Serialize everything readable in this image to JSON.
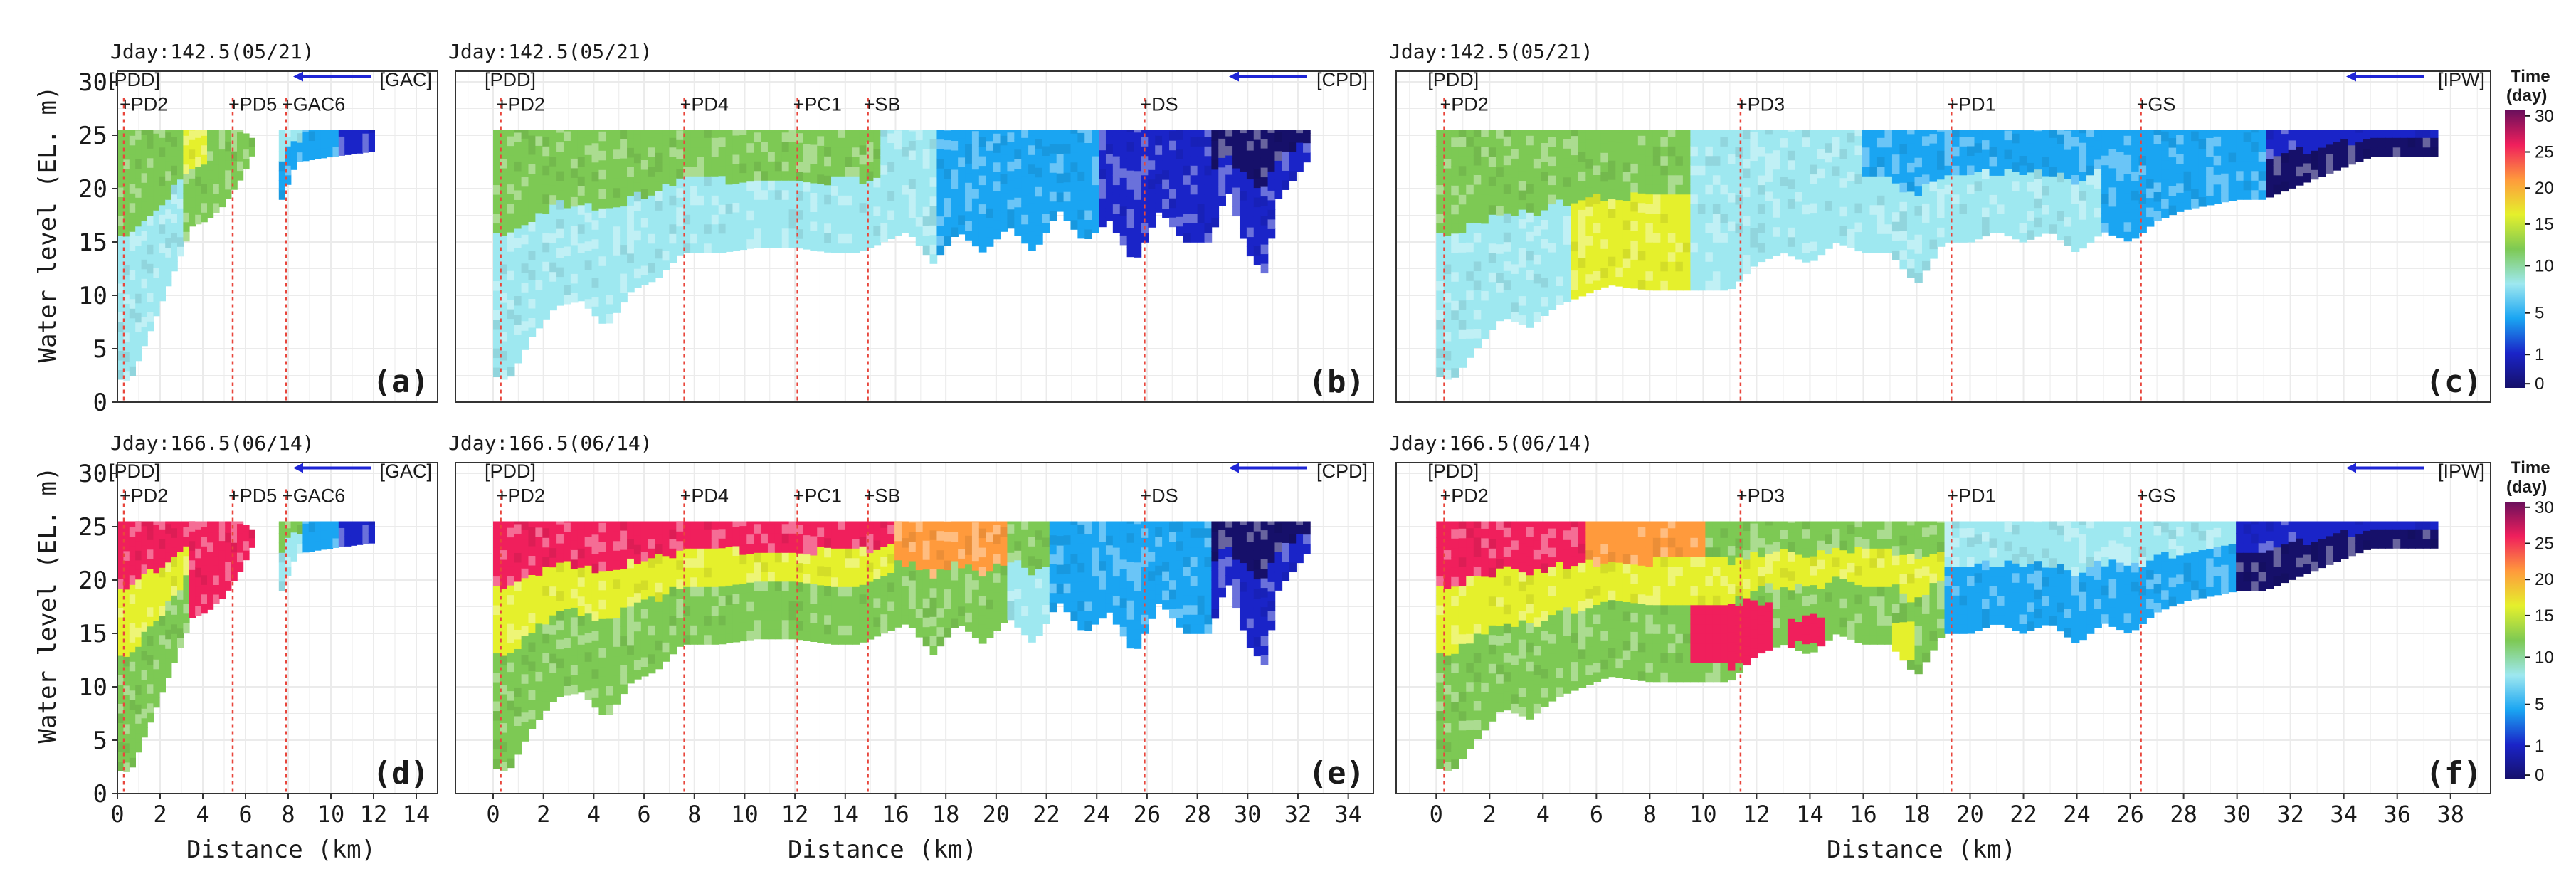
{
  "colors": {
    "grid": "#ebebeb",
    "border": "#333333",
    "marker_line": "#e8463c",
    "arrow": "#1f26d6",
    "text": "#1a1a1a"
  },
  "shared": {
    "ylabel": "Water level (EL. m)",
    "xlabel": "Distance (km)",
    "y_ticks": [
      "0",
      "5",
      "10",
      "15",
      "20",
      "25",
      "30"
    ]
  },
  "legend": {
    "title_line1": "Time",
    "title_line2": "(day)",
    "ticks": [
      "30",
      "25",
      "20",
      "15",
      "10",
      "5",
      "1",
      "0"
    ],
    "palette": [
      "#16106a",
      "#1a24c8",
      "#1aa5f2",
      "#9ee8f0",
      "#7dc954",
      "#e5f02c",
      "#ff9a3c",
      "#f01f5c",
      "#6a0f5c"
    ]
  },
  "chart_data": [
    {
      "id": "a",
      "type": "heatmap",
      "panel_label": "(a)",
      "title": "Jday:142.5(05/21)",
      "xlim": [
        0,
        15
      ],
      "ylim": [
        0,
        31
      ],
      "x_ticks": [
        "0",
        "2",
        "4",
        "6",
        "8",
        "10",
        "12",
        "14"
      ],
      "branch": "[GAC]",
      "origin": "[PDD]",
      "stations": [
        {
          "name": "+PD2",
          "x": 0.3
        },
        {
          "name": "+PD5",
          "x": 5.4
        },
        {
          "name": "+GAC6",
          "x": 7.9
        }
      ],
      "x_max_data": 12.0,
      "surface": [
        [
          0,
          25.5
        ],
        [
          5.8,
          25.5
        ],
        [
          6.6,
          24.3
        ],
        [
          7.6,
          25.5
        ],
        [
          12.0,
          25.5
        ]
      ],
      "bottom": [
        [
          0,
          2.2
        ],
        [
          0.6,
          2.0
        ],
        [
          1.2,
          5
        ],
        [
          2.0,
          9
        ],
        [
          2.8,
          13
        ],
        [
          3.5,
          16.5
        ],
        [
          4.2,
          17
        ],
        [
          5.0,
          18.5
        ],
        [
          5.8,
          21
        ],
        [
          6.6,
          24.3
        ],
        [
          7.6,
          18.5
        ],
        [
          8.4,
          22.5
        ],
        [
          10,
          23
        ],
        [
          12.0,
          23.5
        ]
      ],
      "zones": [
        {
          "x0": 0,
          "x1": 1.0,
          "c": 4,
          "c2": 3
        },
        {
          "x0": 1.0,
          "x1": 3.2,
          "c": 4,
          "c2": 3
        },
        {
          "x0": 3.2,
          "x1": 4.2,
          "c": 5,
          "c2": 4
        },
        {
          "x0": 4.2,
          "x1": 6.6,
          "c": 4,
          "c2": 4
        },
        {
          "x0": 7.6,
          "x1": 8.6,
          "c": 3,
          "c2": 2
        },
        {
          "x0": 8.6,
          "x1": 10.5,
          "c": 2,
          "c2": 2
        },
        {
          "x0": 10.5,
          "x1": 12.0,
          "c": 1,
          "c2": 1
        }
      ]
    },
    {
      "id": "b",
      "type": "heatmap",
      "panel_label": "(b)",
      "title": "Jday:142.5(05/21)",
      "xlim": [
        -1.5,
        35
      ],
      "ylim": [
        0,
        31
      ],
      "x_ticks": [
        "0",
        "2",
        "4",
        "6",
        "8",
        "10",
        "12",
        "14",
        "16",
        "18",
        "20",
        "22",
        "24",
        "26",
        "28",
        "30",
        "32",
        "34"
      ],
      "branch": "[CPD]",
      "origin": "[PDD]",
      "stations": [
        {
          "name": "+PD2",
          "x": 0.3
        },
        {
          "name": "+PD4",
          "x": 7.6
        },
        {
          "name": "+PC1",
          "x": 12.1
        },
        {
          "name": "+SB",
          "x": 14.9
        },
        {
          "name": "+DS",
          "x": 25.9
        }
      ],
      "x_max_data": 32.5,
      "surface": [
        [
          0,
          25.5
        ],
        [
          32.5,
          25.5
        ]
      ],
      "bottom": [
        [
          0,
          2.5
        ],
        [
          0.6,
          2
        ],
        [
          1.5,
          6
        ],
        [
          2.5,
          9
        ],
        [
          3.5,
          9.5
        ],
        [
          4.5,
          7
        ],
        [
          5.5,
          10.5
        ],
        [
          6.5,
          11.5
        ],
        [
          7.5,
          14
        ],
        [
          9,
          14
        ],
        [
          10.5,
          14.5
        ],
        [
          12,
          14.5
        ],
        [
          13.5,
          14
        ],
        [
          14.5,
          14
        ],
        [
          15.5,
          15
        ],
        [
          16.5,
          16
        ],
        [
          17.5,
          13
        ],
        [
          18.5,
          16
        ],
        [
          19.5,
          14
        ],
        [
          20.5,
          16.5
        ],
        [
          21.5,
          14
        ],
        [
          22.5,
          18
        ],
        [
          23.5,
          15
        ],
        [
          24.5,
          17
        ],
        [
          25.5,
          13
        ],
        [
          26.5,
          18
        ],
        [
          27.5,
          15
        ],
        [
          28.5,
          15
        ],
        [
          29.2,
          20
        ],
        [
          30,
          14
        ],
        [
          30.7,
          12
        ],
        [
          31.2,
          19
        ],
        [
          32.5,
          23
        ]
      ],
      "zones": [
        {
          "x0": 0,
          "x1": 4.0,
          "c": 4,
          "c2": 3
        },
        {
          "x0": 4.0,
          "x1": 8.0,
          "c": 4,
          "c2": 3
        },
        {
          "x0": 8.0,
          "x1": 12.0,
          "c": 4,
          "c2": 3
        },
        {
          "x0": 12.0,
          "x1": 15.5,
          "c": 4,
          "c2": 3
        },
        {
          "x0": 15.5,
          "x1": 17.5,
          "c": 3,
          "c2": 3
        },
        {
          "x0": 17.5,
          "x1": 24.0,
          "c": 2,
          "c2": 2
        },
        {
          "x0": 24.0,
          "x1": 28.5,
          "c": 1,
          "c2": 1
        },
        {
          "x0": 28.5,
          "x1": 32.5,
          "c": 0,
          "c2": 1
        }
      ]
    },
    {
      "id": "c",
      "type": "heatmap",
      "panel_label": "(c)",
      "title": "Jday:142.5(05/21)",
      "xlim": [
        -1.5,
        39.5
      ],
      "ylim": [
        0,
        31
      ],
      "x_ticks": [
        "0",
        "2",
        "4",
        "6",
        "8",
        "10",
        "12",
        "14",
        "16",
        "18",
        "20",
        "22",
        "24",
        "26",
        "28",
        "30",
        "32",
        "34",
        "36",
        "38"
      ],
      "branch": "[IPW]",
      "origin": "[PDD]",
      "stations": [
        {
          "name": "+PD2",
          "x": 0.3
        },
        {
          "name": "+PD3",
          "x": 11.4
        },
        {
          "name": "+PD1",
          "x": 19.3
        },
        {
          "name": "+GS",
          "x": 26.4
        }
      ],
      "x_max_data": 37.5,
      "surface": [
        [
          0,
          25.5
        ],
        [
          37.5,
          25.5
        ]
      ],
      "bottom": [
        [
          0,
          2.5
        ],
        [
          0.6,
          2
        ],
        [
          1.5,
          5
        ],
        [
          2.5,
          8
        ],
        [
          3.5,
          7
        ],
        [
          4.5,
          9
        ],
        [
          5.5,
          10
        ],
        [
          6.5,
          11
        ],
        [
          8,
          10.5
        ],
        [
          9.5,
          10.5
        ],
        [
          11,
          10.5
        ],
        [
          12,
          13
        ],
        [
          13,
          14
        ],
        [
          14,
          13
        ],
        [
          15,
          15
        ],
        [
          16,
          14
        ],
        [
          17,
          14
        ],
        [
          18,
          11
        ],
        [
          19,
          15
        ],
        [
          20,
          15
        ],
        [
          21,
          16
        ],
        [
          22,
          15
        ],
        [
          23,
          16
        ],
        [
          24,
          14
        ],
        [
          25,
          16
        ],
        [
          26,
          15
        ],
        [
          27,
          17
        ],
        [
          28,
          18
        ],
        [
          29,
          18.5
        ],
        [
          30,
          19
        ],
        [
          31,
          19
        ],
        [
          32,
          20
        ],
        [
          33,
          21
        ],
        [
          34,
          22
        ],
        [
          35,
          23
        ],
        [
          37.5,
          23
        ]
      ],
      "zones": [
        {
          "x0": 0,
          "x1": 5.0,
          "c": 4,
          "c2": 3
        },
        {
          "x0": 5.0,
          "x1": 9.5,
          "c": 4,
          "c2": 5
        },
        {
          "x0": 9.5,
          "x1": 16.0,
          "c": 3,
          "c2": 3
        },
        {
          "x0": 16.0,
          "x1": 25.0,
          "c": 2,
          "c2": 3
        },
        {
          "x0": 25.0,
          "x1": 31.0,
          "c": 2,
          "c2": 2
        },
        {
          "x0": 31.0,
          "x1": 37.5,
          "c": 1,
          "c2": 0
        }
      ]
    },
    {
      "id": "d",
      "type": "heatmap",
      "panel_label": "(d)",
      "title": "Jday:166.5(06/14)",
      "xlim": [
        0,
        15
      ],
      "ylim": [
        0,
        31
      ],
      "x_ticks": [
        "0",
        "2",
        "4",
        "6",
        "8",
        "10",
        "12",
        "14"
      ],
      "branch": "[GAC]",
      "origin": "[PDD]",
      "stations": [
        {
          "name": "+PD2",
          "x": 0.3
        },
        {
          "name": "+PD5",
          "x": 5.4
        },
        {
          "name": "+GAC6",
          "x": 7.9
        }
      ],
      "x_max_data": 12.0,
      "surface": [
        [
          0,
          25.5
        ],
        [
          5.8,
          25.5
        ],
        [
          6.6,
          24.3
        ],
        [
          7.6,
          25.5
        ],
        [
          12.0,
          25.5
        ]
      ],
      "bottom": [
        [
          0,
          2.2
        ],
        [
          0.6,
          2.0
        ],
        [
          1.2,
          5
        ],
        [
          2.0,
          9
        ],
        [
          2.8,
          13
        ],
        [
          3.5,
          16.5
        ],
        [
          4.2,
          17
        ],
        [
          5.0,
          18.5
        ],
        [
          5.8,
          21
        ],
        [
          6.6,
          24.3
        ],
        [
          7.6,
          18.5
        ],
        [
          8.4,
          22.5
        ],
        [
          10,
          23
        ],
        [
          12.0,
          23.5
        ]
      ],
      "zones": [
        {
          "x0": 0,
          "x1": 3.5,
          "c": 7,
          "c2": 4,
          "mid": 5
        },
        {
          "x0": 3.5,
          "x1": 6.6,
          "c": 7,
          "c2": 7
        },
        {
          "x0": 7.6,
          "x1": 8.6,
          "c": 4,
          "c2": 3
        },
        {
          "x0": 8.6,
          "x1": 10.5,
          "c": 2,
          "c2": 2
        },
        {
          "x0": 10.5,
          "x1": 12.0,
          "c": 1,
          "c2": 1
        }
      ]
    },
    {
      "id": "e",
      "type": "heatmap",
      "panel_label": "(e)",
      "title": "Jday:166.5(06/14)",
      "xlim": [
        -1.5,
        35
      ],
      "ylim": [
        0,
        31
      ],
      "x_ticks": [
        "0",
        "2",
        "4",
        "6",
        "8",
        "10",
        "12",
        "14",
        "16",
        "18",
        "20",
        "22",
        "24",
        "26",
        "28",
        "30",
        "32",
        "34"
      ],
      "branch": "[CPD]",
      "origin": "[PDD]",
      "stations": [
        {
          "name": "+PD2",
          "x": 0.3
        },
        {
          "name": "+PD4",
          "x": 7.6
        },
        {
          "name": "+PC1",
          "x": 12.1
        },
        {
          "name": "+SB",
          "x": 14.9
        },
        {
          "name": "+DS",
          "x": 25.9
        }
      ],
      "x_max_data": 32.5,
      "surface": [
        [
          0,
          25.5
        ],
        [
          32.5,
          25.5
        ]
      ],
      "bottom": [
        [
          0,
          2.5
        ],
        [
          0.6,
          2
        ],
        [
          1.5,
          6
        ],
        [
          2.5,
          9
        ],
        [
          3.5,
          9.5
        ],
        [
          4.5,
          7
        ],
        [
          5.5,
          10.5
        ],
        [
          6.5,
          11.5
        ],
        [
          7.5,
          14
        ],
        [
          9,
          14
        ],
        [
          10.5,
          14.5
        ],
        [
          12,
          14.5
        ],
        [
          13.5,
          14
        ],
        [
          14.5,
          14
        ],
        [
          15.5,
          15
        ],
        [
          16.5,
          16
        ],
        [
          17.5,
          13
        ],
        [
          18.5,
          16
        ],
        [
          19.5,
          14
        ],
        [
          20.5,
          16.5
        ],
        [
          21.5,
          14
        ],
        [
          22.5,
          18
        ],
        [
          23.5,
          15
        ],
        [
          24.5,
          17
        ],
        [
          25.5,
          13
        ],
        [
          26.5,
          18
        ],
        [
          27.5,
          15
        ],
        [
          28.5,
          15
        ],
        [
          29.2,
          20
        ],
        [
          30,
          14
        ],
        [
          30.7,
          12
        ],
        [
          31.2,
          19
        ],
        [
          32.5,
          23
        ]
      ],
      "zones": [
        {
          "x0": 0,
          "x1": 8.0,
          "c": 7,
          "c2": 4,
          "mid": 5
        },
        {
          "x0": 8.0,
          "x1": 16.0,
          "c": 7,
          "c2": 4,
          "mid": 5
        },
        {
          "x0": 16.0,
          "x1": 20.5,
          "c": 6,
          "c2": 4
        },
        {
          "x0": 20.5,
          "x1": 22.0,
          "c": 4,
          "c2": 3
        },
        {
          "x0": 22.0,
          "x1": 28.5,
          "c": 2,
          "c2": 2
        },
        {
          "x0": 28.5,
          "x1": 32.5,
          "c": 0,
          "c2": 1
        }
      ]
    },
    {
      "id": "f",
      "type": "heatmap",
      "panel_label": "(f)",
      "title": "Jday:166.5(06/14)",
      "xlim": [
        -1.5,
        39.5
      ],
      "ylim": [
        0,
        31
      ],
      "x_ticks": [
        "0",
        "2",
        "4",
        "6",
        "8",
        "10",
        "12",
        "14",
        "16",
        "18",
        "20",
        "22",
        "24",
        "26",
        "28",
        "30",
        "32",
        "34",
        "36",
        "38"
      ],
      "branch": "[IPW]",
      "origin": "[PDD]",
      "stations": [
        {
          "name": "+PD2",
          "x": 0.3
        },
        {
          "name": "+PD3",
          "x": 11.4
        },
        {
          "name": "+PD1",
          "x": 19.3
        },
        {
          "name": "+GS",
          "x": 26.4
        }
      ],
      "x_max_data": 37.5,
      "surface": [
        [
          0,
          25.5
        ],
        [
          37.5,
          25.5
        ]
      ],
      "bottom": [
        [
          0,
          2.5
        ],
        [
          0.6,
          2
        ],
        [
          1.5,
          5
        ],
        [
          2.5,
          8
        ],
        [
          3.5,
          7
        ],
        [
          4.5,
          9
        ],
        [
          5.5,
          10
        ],
        [
          6.5,
          11
        ],
        [
          8,
          10.5
        ],
        [
          9.5,
          10.5
        ],
        [
          11,
          10.5
        ],
        [
          12,
          13
        ],
        [
          13,
          14
        ],
        [
          14,
          13
        ],
        [
          15,
          15
        ],
        [
          16,
          14
        ],
        [
          17,
          14
        ],
        [
          18,
          11
        ],
        [
          19,
          15
        ],
        [
          20,
          15
        ],
        [
          21,
          16
        ],
        [
          22,
          15
        ],
        [
          23,
          16
        ],
        [
          24,
          14
        ],
        [
          25,
          16
        ],
        [
          26,
          15
        ],
        [
          27,
          17
        ],
        [
          28,
          18
        ],
        [
          29,
          18.5
        ],
        [
          30,
          19
        ],
        [
          31,
          19
        ],
        [
          32,
          20
        ],
        [
          33,
          21
        ],
        [
          34,
          22
        ],
        [
          35,
          23
        ],
        [
          37.5,
          23
        ]
      ],
      "zones": [
        {
          "x0": 0,
          "x1": 5.5,
          "c": 7,
          "c2": 4,
          "mid": 5
        },
        {
          "x0": 5.5,
          "x1": 10.0,
          "c": 6,
          "c2": 4,
          "mid": 5
        },
        {
          "x0": 10.0,
          "x1": 19.0,
          "c": 4,
          "c2": 4,
          "mid": 5
        },
        {
          "x0": 19.0,
          "x1": 30.0,
          "c": 3,
          "c2": 2
        },
        {
          "x0": 30.0,
          "x1": 37.5,
          "c": 1,
          "c2": 0
        }
      ],
      "hotspots": [
        {
          "x0": 9.6,
          "x1": 12.6,
          "y0": 11.5,
          "y1": 17.5,
          "c": 7
        },
        {
          "x0": 13.2,
          "x1": 14.6,
          "y0": 13.5,
          "y1": 16,
          "c": 7
        },
        {
          "x0": 17.2,
          "x1": 18.0,
          "y0": 12,
          "y1": 16,
          "c": 5
        }
      ]
    }
  ]
}
